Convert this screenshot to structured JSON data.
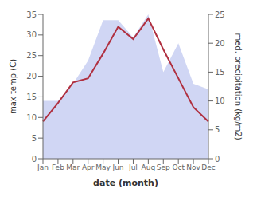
{
  "chart_data": {
    "type": "line",
    "categories": [
      "Jan",
      "Feb",
      "Mar",
      "Apr",
      "May",
      "Jun",
      "Jul",
      "Aug",
      "Sep",
      "Oct",
      "Nov",
      "Dec"
    ],
    "series": [
      {
        "type": "area",
        "axis": "y2",
        "color": "#c0c8f0",
        "values": [
          10,
          10,
          13,
          17,
          24,
          24,
          21,
          25,
          15,
          20,
          13,
          12
        ]
      },
      {
        "type": "line",
        "axis": "y",
        "color": "#b03040",
        "marker": "none",
        "values": [
          9.0,
          13.5,
          18.5,
          19.5,
          25.5,
          32.0,
          29.0,
          34.0,
          26.5,
          19.5,
          12.5,
          9.0
        ]
      }
    ],
    "xlabel": "date (month)",
    "ylabel": "max temp (C)",
    "y2label": "med. precipitation (kg/m2)",
    "ylim": [
      0,
      35
    ],
    "yticks": [
      0,
      5,
      10,
      15,
      20,
      25,
      30,
      35
    ],
    "y2lim": [
      0,
      25
    ],
    "y2ticks": [
      0,
      5,
      10,
      15,
      20,
      25
    ],
    "grid": false
  }
}
